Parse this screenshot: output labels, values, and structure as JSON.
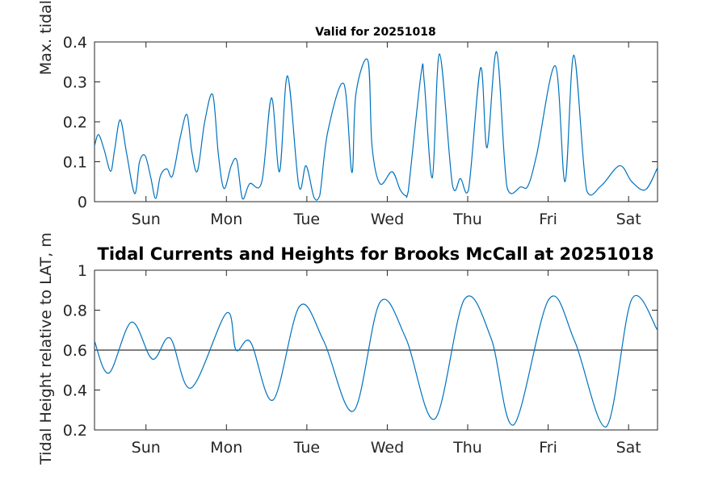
{
  "chart_data": [
    {
      "type": "line",
      "title": "Valid for 20251018",
      "ylabel": "Max. tidal current speed, kn",
      "ylim": [
        0,
        0.4
      ],
      "yticks": [
        0,
        0.1,
        0.2,
        0.3,
        0.4
      ],
      "ytick_labels": [
        "0",
        "0.1",
        "0.2",
        "0.3",
        "0.4"
      ],
      "xlim": [
        0,
        7
      ],
      "xticks": [
        0.64,
        1.64,
        2.64,
        3.64,
        4.64,
        5.64,
        6.64
      ],
      "xtick_labels": [
        "Sun",
        "Mon",
        "Tue",
        "Wed",
        "Thu",
        "Fri",
        "Sat"
      ],
      "series_color": "#0072BD",
      "x": [
        0,
        0.05,
        0.12,
        0.2,
        0.25,
        0.32,
        0.4,
        0.5,
        0.56,
        0.63,
        0.7,
        0.76,
        0.82,
        0.9,
        0.97,
        1.07,
        1.15,
        1.21,
        1.28,
        1.37,
        1.47,
        1.54,
        1.61,
        1.7,
        1.77,
        1.84,
        1.93,
        2.08,
        2.2,
        2.3,
        2.4,
        2.54,
        2.63,
        2.73,
        2.8,
        2.9,
        3.1,
        3.2,
        3.25,
        3.4,
        3.45,
        3.55,
        3.7,
        3.8,
        3.87,
        3.9,
        4.06,
        4.1,
        4.2,
        4.29,
        4.45,
        4.55,
        4.65,
        4.8,
        4.88,
        5.0,
        5.13,
        5.3,
        5.39,
        5.5,
        5.73,
        5.85,
        5.96,
        6.12,
        6.3,
        6.53,
        6.68,
        6.85,
        7.0
      ],
      "y": [
        0.14,
        0.168,
        0.13,
        0.076,
        0.13,
        0.205,
        0.12,
        0.02,
        0.1,
        0.115,
        0.06,
        0.008,
        0.065,
        0.082,
        0.065,
        0.165,
        0.218,
        0.125,
        0.077,
        0.2,
        0.268,
        0.118,
        0.033,
        0.09,
        0.103,
        0.007,
        0.045,
        0.05,
        0.26,
        0.075,
        0.315,
        0.04,
        0.09,
        0.01,
        0.015,
        0.175,
        0.295,
        0.073,
        0.27,
        0.353,
        0.14,
        0.045,
        0.075,
        0.03,
        0.015,
        0.025,
        0.32,
        0.3,
        0.06,
        0.37,
        0.042,
        0.058,
        0.03,
        0.335,
        0.135,
        0.375,
        0.035,
        0.037,
        0.04,
        0.12,
        0.34,
        0.05,
        0.367,
        0.027,
        0.04,
        0.09,
        0.05,
        0.03,
        0.085
      ]
    },
    {
      "type": "line",
      "title": "Tidal Currents and Heights for Brooks McCall at 20251018",
      "ylabel": "Tidal Height relative to LAT, m",
      "ylim": [
        0.2,
        1.0
      ],
      "yticks": [
        0.2,
        0.4,
        0.6,
        0.8,
        1.0
      ],
      "ytick_labels": [
        "0.2",
        "0.4",
        "0.6",
        "0.8",
        "1"
      ],
      "xlim": [
        0,
        7
      ],
      "xticks": [
        0.64,
        1.64,
        2.64,
        3.64,
        4.64,
        5.64,
        6.64
      ],
      "xtick_labels": [
        "Sun",
        "Mon",
        "Tue",
        "Wed",
        "Thu",
        "Fri",
        "Sat"
      ],
      "reference_line": 0.6,
      "series_color": "#0072BD",
      "x": [
        0,
        0.18,
        0.46,
        0.72,
        0.94,
        1.2,
        1.64,
        1.76,
        1.94,
        2.22,
        2.55,
        2.85,
        3.22,
        3.55,
        3.87,
        4.23,
        4.6,
        4.93,
        5.21,
        5.65,
        5.97,
        6.36,
        6.68,
        7.0
      ],
      "y": [
        0.645,
        0.485,
        0.74,
        0.555,
        0.66,
        0.41,
        0.785,
        0.6,
        0.64,
        0.35,
        0.82,
        0.645,
        0.295,
        0.84,
        0.66,
        0.255,
        0.855,
        0.66,
        0.225,
        0.855,
        0.645,
        0.215,
        0.855,
        0.7
      ]
    }
  ]
}
